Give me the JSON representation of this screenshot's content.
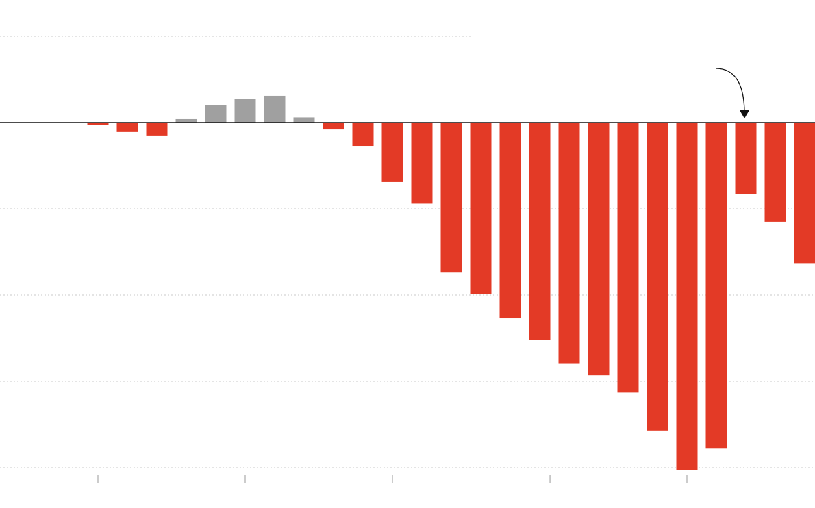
{
  "chart_data": {
    "type": "bar",
    "categories": [
      null,
      null,
      null,
      null,
      null,
      null,
      null,
      null,
      null,
      null,
      null,
      null,
      null,
      null,
      null,
      null,
      null,
      null,
      null,
      null,
      null,
      null,
      null,
      null,
      null
    ],
    "values": [
      -0.03,
      -0.11,
      -0.15,
      0.04,
      0.2,
      0.27,
      0.31,
      0.06,
      -0.08,
      -0.27,
      -0.69,
      -0.94,
      -1.74,
      -1.99,
      -2.27,
      -2.52,
      -2.79,
      -2.93,
      -3.13,
      -3.57,
      -4.03,
      -3.78,
      -0.83,
      -1.15,
      -1.63
    ],
    "positive_color": "#a0a0a0",
    "negative_color": "#e33a26",
    "ylim": [
      -4.2,
      1.2
    ],
    "yticks": [
      1,
      0,
      -1,
      -2,
      -3,
      -4
    ],
    "xticks": [
      0,
      5,
      10,
      15.35,
      20
    ],
    "grid": true
  }
}
